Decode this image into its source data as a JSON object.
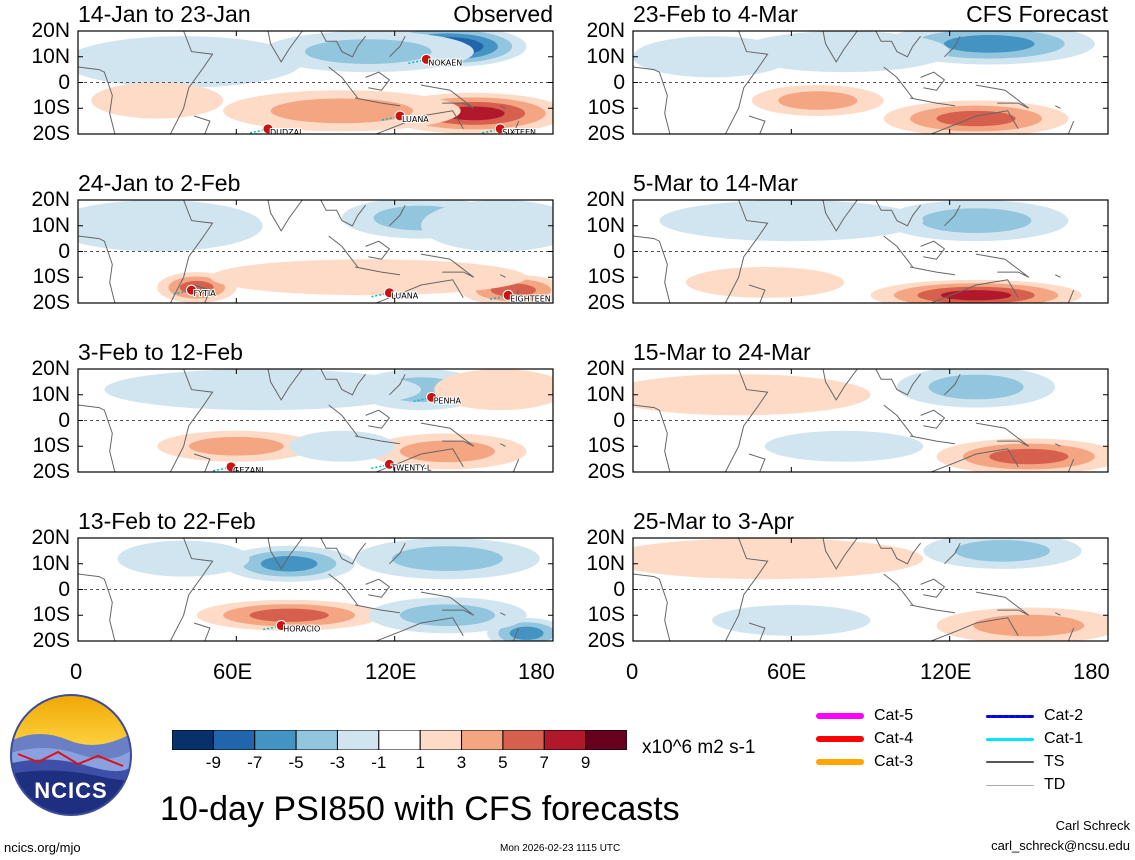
{
  "figure": {
    "title": "10-day PSI850 with CFS forecasts",
    "units": "x10^6 m2 s-1",
    "website": "ncics.org/mjo",
    "timestamp": "Mon 2026-02-23 1115 UTC",
    "author": "Carl Schreck",
    "email": "carl_schreck@ncsu.edu",
    "logo_text": "NCICS"
  },
  "colors": {
    "neg5": "#08306b",
    "neg4": "#2166ac",
    "neg3": "#4393c3",
    "neg2": "#92c5de",
    "neg1": "#d1e5f0",
    "zero": "#ffffff",
    "pos1": "#fddbc7",
    "pos2": "#f4a582",
    "pos3": "#d6604d",
    "pos4": "#b2182b",
    "pos5": "#67001f"
  },
  "colorbar": {
    "labels": [
      "-9",
      "-7",
      "-5",
      "-3",
      "-1",
      "1",
      "3",
      "5",
      "7",
      "9"
    ],
    "colors": [
      "#08306b",
      "#2166ac",
      "#4393c3",
      "#92c5de",
      "#d1e5f0",
      "#ffffff",
      "#fddbc7",
      "#f4a582",
      "#d6604d",
      "#b2182b",
      "#67001f"
    ]
  },
  "legend": {
    "items": [
      {
        "label": "Cat-5",
        "color": "#ff00ff"
      },
      {
        "label": "Cat-4",
        "color": "#ff0000"
      },
      {
        "label": "Cat-3",
        "color": "#ffa500"
      },
      {
        "label": "Cat-2",
        "color": "#0000ff"
      },
      {
        "label": "Cat-1",
        "color": "#00e5ff"
      },
      {
        "label": "TS",
        "color": "#555555"
      },
      {
        "label": "TD",
        "color": "#aaaaaa"
      }
    ]
  },
  "chart_data": {
    "type": "heatmap",
    "title": "10-day PSI850 with CFS forecasts",
    "xlabel": "",
    "ylabel": "",
    "x_ticks": [
      "0",
      "60E",
      "120E",
      "180"
    ],
    "y_ticks": [
      "20N",
      "10N",
      "0",
      "10S",
      "20S"
    ],
    "xlim": [
      0,
      180
    ],
    "ylim": [
      -20,
      20
    ],
    "levels": [
      -9,
      -7,
      -5,
      -3,
      -1,
      1,
      3,
      5,
      7,
      9
    ],
    "units": "x10^6 m2 s-1",
    "observed_label": "Observed",
    "forecast_label": "CFS Forecast",
    "panels": [
      {
        "period": "14-Jan to 23-Jan",
        "source": "Observed",
        "features": [
          {
            "lon": 140,
            "lat": 14,
            "value": -10,
            "rlon": 30,
            "rlat": 8
          },
          {
            "lon": 110,
            "lat": 12,
            "value": -4,
            "rlon": 40,
            "rlat": 8
          },
          {
            "lon": 40,
            "lat": 8,
            "value": -2,
            "rlon": 45,
            "rlat": 10
          },
          {
            "lon": 150,
            "lat": -12,
            "value": 7,
            "rlon": 35,
            "rlat": 8
          },
          {
            "lon": 100,
            "lat": -11,
            "value": 4,
            "rlon": 45,
            "rlat": 8
          },
          {
            "lon": 30,
            "lat": -7,
            "value": 2,
            "rlon": 25,
            "rlat": 7
          }
        ],
        "storms": [
          {
            "name": "NOKAEN",
            "lon": 132,
            "lat": 9
          },
          {
            "name": "DUDZAI",
            "lon": 72,
            "lat": -18
          },
          {
            "name": "LUANA",
            "lon": 122,
            "lat": -13
          },
          {
            "name": "SIXTEEN",
            "lon": 160,
            "lat": -18
          }
        ]
      },
      {
        "period": "24-Jan to 2-Feb",
        "source": "Observed",
        "features": [
          {
            "lon": 130,
            "lat": 13,
            "value": -4,
            "rlon": 30,
            "rlat": 8
          },
          {
            "lon": 160,
            "lat": 10,
            "value": -2,
            "rlon": 30,
            "rlat": 10
          },
          {
            "lon": 30,
            "lat": 10,
            "value": -2,
            "rlon": 40,
            "rlat": 10
          },
          {
            "lon": 45,
            "lat": -14,
            "value": 5,
            "rlon": 15,
            "rlat": 6
          },
          {
            "lon": 165,
            "lat": -15,
            "value": 5,
            "rlon": 20,
            "rlat": 6
          },
          {
            "lon": 110,
            "lat": -10,
            "value": 2,
            "rlon": 60,
            "rlat": 7
          }
        ],
        "storms": [
          {
            "name": "FYTIA",
            "lon": 43,
            "lat": -15
          },
          {
            "name": "LUANA",
            "lon": 118,
            "lat": -16
          },
          {
            "name": "EIGHTEEN",
            "lon": 163,
            "lat": -17
          }
        ]
      },
      {
        "period": "3-Feb to 12-Feb",
        "source": "Observed",
        "features": [
          {
            "lon": 130,
            "lat": 12,
            "value": -3,
            "rlon": 25,
            "rlat": 8
          },
          {
            "lon": 70,
            "lat": 12,
            "value": -2,
            "rlon": 60,
            "rlat": 8
          },
          {
            "lon": 160,
            "lat": 12,
            "value": 2,
            "rlon": 25,
            "rlat": 8
          },
          {
            "lon": 60,
            "lat": -10,
            "value": 3,
            "rlon": 30,
            "rlat": 6
          },
          {
            "lon": 140,
            "lat": -12,
            "value": 3,
            "rlon": 30,
            "rlat": 7
          },
          {
            "lon": 100,
            "lat": -10,
            "value": -2,
            "rlon": 20,
            "rlat": 6
          }
        ],
        "storms": [
          {
            "name": "PENHA",
            "lon": 134,
            "lat": 9
          },
          {
            "name": "GEZANI",
            "lon": 58,
            "lat": -18
          },
          {
            "name": "TWENTY-L",
            "lon": 118,
            "lat": -17
          }
        ]
      },
      {
        "period": "13-Feb to 22-Feb",
        "source": "Observed",
        "features": [
          {
            "lon": 80,
            "lat": 10,
            "value": -6,
            "rlon": 25,
            "rlat": 7
          },
          {
            "lon": 140,
            "lat": 12,
            "value": -3,
            "rlon": 35,
            "rlat": 8
          },
          {
            "lon": 40,
            "lat": 12,
            "value": -2,
            "rlon": 25,
            "rlat": 7
          },
          {
            "lon": 80,
            "lat": -10,
            "value": 5,
            "rlon": 35,
            "rlat": 6
          },
          {
            "lon": 170,
            "lat": -17,
            "value": -6,
            "rlon": 15,
            "rlat": 6
          },
          {
            "lon": 140,
            "lat": -10,
            "value": -3,
            "rlon": 30,
            "rlat": 7
          }
        ],
        "storms": [
          {
            "name": "HORACIO",
            "lon": 77,
            "lat": -14
          }
        ]
      },
      {
        "period": "23-Feb to 4-Mar",
        "source": "CFS Forecast",
        "features": [
          {
            "lon": 135,
            "lat": 15,
            "value": -6,
            "rlon": 40,
            "rlat": 8
          },
          {
            "lon": 80,
            "lat": 12,
            "value": -2,
            "rlon": 40,
            "rlat": 8
          },
          {
            "lon": 130,
            "lat": -14,
            "value": 6,
            "rlon": 35,
            "rlat": 7
          },
          {
            "lon": 70,
            "lat": -7,
            "value": 3,
            "rlon": 25,
            "rlat": 6
          },
          {
            "lon": 30,
            "lat": 10,
            "value": -1,
            "rlon": 30,
            "rlat": 8
          }
        ],
        "storms": []
      },
      {
        "period": "5-Mar to 14-Mar",
        "source": "CFS Forecast",
        "features": [
          {
            "lon": 130,
            "lat": 12,
            "value": -4,
            "rlon": 35,
            "rlat": 8
          },
          {
            "lon": 60,
            "lat": 12,
            "value": -2,
            "rlon": 50,
            "rlat": 8
          },
          {
            "lon": 130,
            "lat": -17,
            "value": 7,
            "rlon": 40,
            "rlat": 6
          },
          {
            "lon": 50,
            "lat": -12,
            "value": 2,
            "rlon": 30,
            "rlat": 6
          }
        ],
        "storms": []
      },
      {
        "period": "15-Mar to 24-Mar",
        "source": "CFS Forecast",
        "features": [
          {
            "lon": 130,
            "lat": 13,
            "value": -4,
            "rlon": 30,
            "rlat": 8
          },
          {
            "lon": 40,
            "lat": 10,
            "value": 2,
            "rlon": 50,
            "rlat": 8
          },
          {
            "lon": 150,
            "lat": -14,
            "value": 5,
            "rlon": 35,
            "rlat": 7
          },
          {
            "lon": 80,
            "lat": -10,
            "value": -2,
            "rlon": 30,
            "rlat": 6
          }
        ],
        "storms": []
      },
      {
        "period": "25-Mar to 3-Apr",
        "source": "CFS Forecast",
        "features": [
          {
            "lon": 140,
            "lat": 15,
            "value": -3,
            "rlon": 30,
            "rlat": 7
          },
          {
            "lon": 50,
            "lat": 12,
            "value": 2,
            "rlon": 60,
            "rlat": 8
          },
          {
            "lon": 150,
            "lat": -14,
            "value": 4,
            "rlon": 35,
            "rlat": 7
          },
          {
            "lon": 60,
            "lat": -12,
            "value": -1,
            "rlon": 30,
            "rlat": 6
          }
        ],
        "storms": []
      }
    ]
  }
}
